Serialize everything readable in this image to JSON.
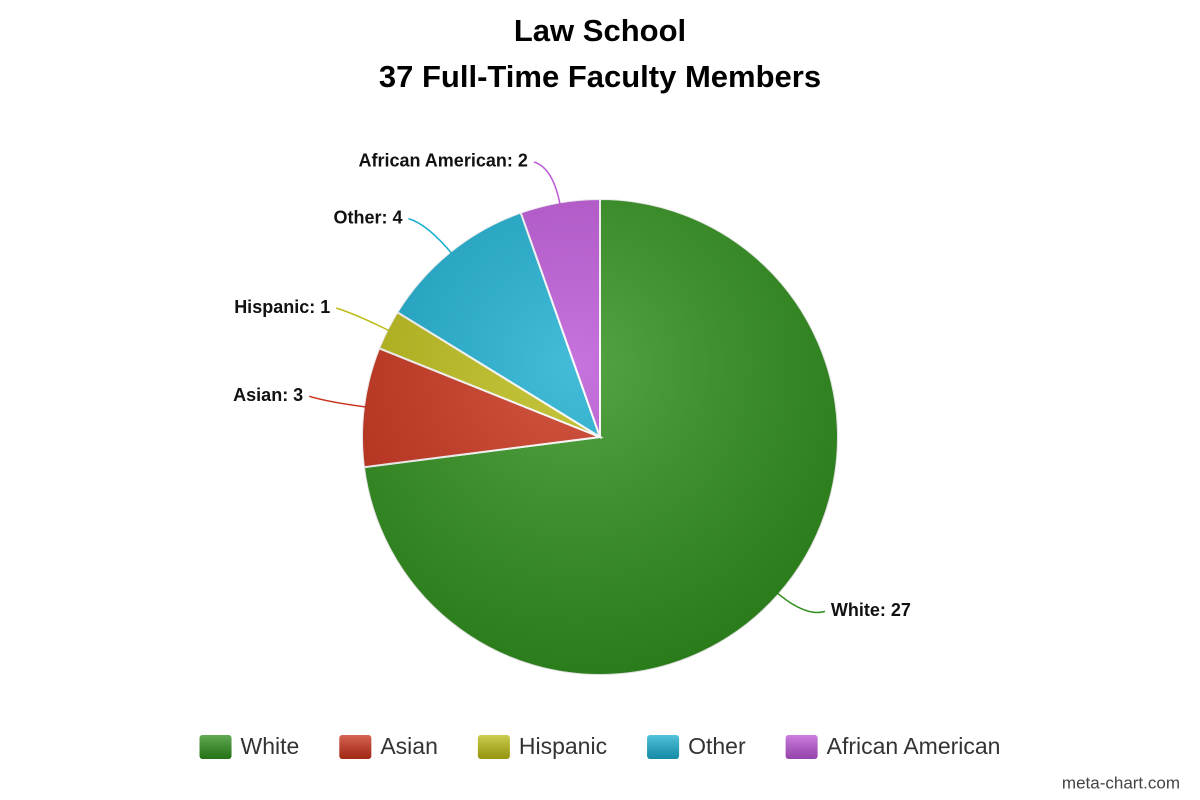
{
  "chart_data": {
    "type": "pie",
    "title": "Law School",
    "subtitle": "37 Full-Time Faculty Members",
    "categories": [
      "White",
      "Asian",
      "Hispanic",
      "Other",
      "African American"
    ],
    "values": [
      27,
      3,
      1,
      4,
      2
    ],
    "value_labels": [
      "White: 27",
      "Asian: 3",
      "Hispanic: 1",
      "Other: 4",
      "African American: 2"
    ],
    "colors": [
      "#2f8f1c",
      "#c9321a",
      "#bcbc16",
      "#1aaed0",
      "#bb55d6"
    ],
    "legend": "bottom",
    "credit": "meta-chart.com"
  }
}
